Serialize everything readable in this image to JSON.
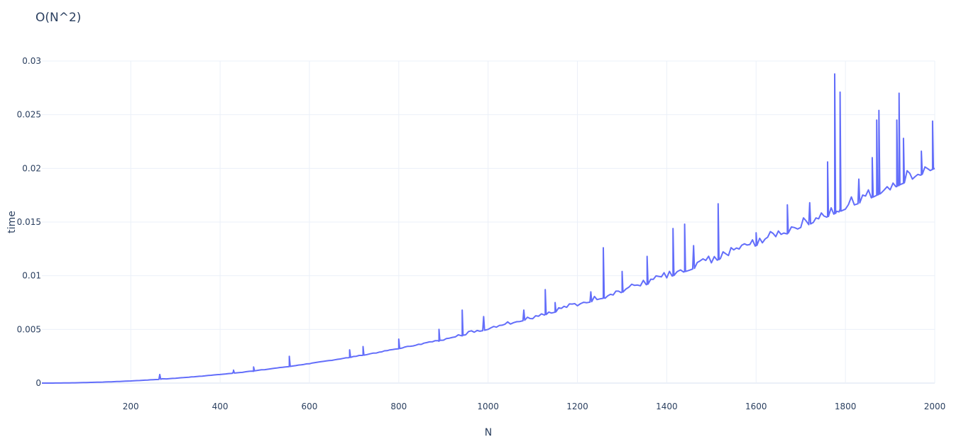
{
  "chart_data": {
    "type": "line",
    "title": "O(N^2)",
    "xlabel": "N",
    "ylabel": "time",
    "xlim": [
      1,
      2000
    ],
    "ylim": [
      0,
      0.03
    ],
    "x_ticks": [
      200,
      400,
      600,
      800,
      1000,
      1200,
      1400,
      1600,
      1800,
      2000
    ],
    "y_ticks": [
      0,
      0.005,
      0.01,
      0.015,
      0.02,
      0.025,
      0.03
    ],
    "y_tick_labels": [
      "0",
      "0.005",
      "0.01",
      "0.015",
      "0.02",
      "0.025",
      "0.03"
    ],
    "grid": true,
    "legend": "none",
    "line_color": "#636efa",
    "series": [
      {
        "trend": "quadratic",
        "coefficient": 5e-09,
        "x": [
          1,
          50,
          100,
          150,
          200,
          220,
          262,
          265,
          270,
          280,
          300,
          360,
          400,
          425,
          430,
          450,
          475,
          500,
          555,
          600,
          690,
          720,
          750,
          800,
          850,
          890,
          900,
          942,
          950,
          1000,
          1050,
          1100,
          1128,
          1150,
          1200,
          1258,
          1262,
          1300,
          1356,
          1400,
          1414,
          1440,
          1450,
          1500,
          1515,
          1520,
          1600,
          1670,
          1700,
          1760,
          1776,
          1780,
          1788,
          1800,
          1820,
          1860,
          1870,
          1875,
          1880,
          1900,
          1915,
          1920,
          1930,
          1950,
          1970,
          1990,
          1995,
          1997,
          2000
        ],
        "y": [
          0.0,
          1e-05,
          5e-05,
          0.00011,
          0.0002,
          0.00024,
          0.00034,
          0.0008,
          0.0004,
          0.00039,
          0.00045,
          0.00065,
          0.0008,
          0.0009,
          0.0011,
          0.001,
          0.0011,
          0.00125,
          0.00155,
          0.0018,
          0.0024,
          0.0026,
          0.0028,
          0.0032,
          0.0036,
          0.0039,
          0.004,
          0.0044,
          0.0045,
          0.005,
          0.0055,
          0.006,
          0.0064,
          0.0066,
          0.0072,
          0.0079,
          0.0079,
          0.0085,
          0.0092,
          0.0098,
          0.01,
          0.0104,
          0.0105,
          0.0112,
          0.0115,
          0.0116,
          0.0128,
          0.0139,
          0.0145,
          0.0155,
          0.0158,
          0.016,
          0.0162,
          0.0162,
          0.0166,
          0.0173,
          0.0175,
          0.0176,
          0.0177,
          0.018,
          0.0183,
          0.0184,
          0.0186,
          0.019,
          0.0194,
          0.0198,
          0.0199,
          0.02,
          0.02
        ],
        "spikes": [
          [
            265,
            0.0008
          ],
          [
            430,
            0.0012
          ],
          [
            475,
            0.0015
          ],
          [
            555,
            0.0025
          ],
          [
            690,
            0.0031
          ],
          [
            720,
            0.0034
          ],
          [
            800,
            0.0041
          ],
          [
            890,
            0.005
          ],
          [
            942,
            0.0068
          ],
          [
            990,
            0.0062
          ],
          [
            1080,
            0.0068
          ],
          [
            1128,
            0.0087
          ],
          [
            1150,
            0.0075
          ],
          [
            1230,
            0.0085
          ],
          [
            1258,
            0.0126
          ],
          [
            1300,
            0.0104
          ],
          [
            1356,
            0.0118
          ],
          [
            1414,
            0.0144
          ],
          [
            1440,
            0.0148
          ],
          [
            1460,
            0.0128
          ],
          [
            1515,
            0.0167
          ],
          [
            1600,
            0.014
          ],
          [
            1670,
            0.0166
          ],
          [
            1720,
            0.0168
          ],
          [
            1760,
            0.0206
          ],
          [
            1776,
            0.0288
          ],
          [
            1788,
            0.0271
          ],
          [
            1830,
            0.019
          ],
          [
            1860,
            0.021
          ],
          [
            1870,
            0.0245
          ],
          [
            1875,
            0.0254
          ],
          [
            1915,
            0.0245
          ],
          [
            1920,
            0.027
          ],
          [
            1930,
            0.0228
          ],
          [
            1970,
            0.0216
          ],
          [
            1995,
            0.0244
          ]
        ]
      }
    ]
  }
}
